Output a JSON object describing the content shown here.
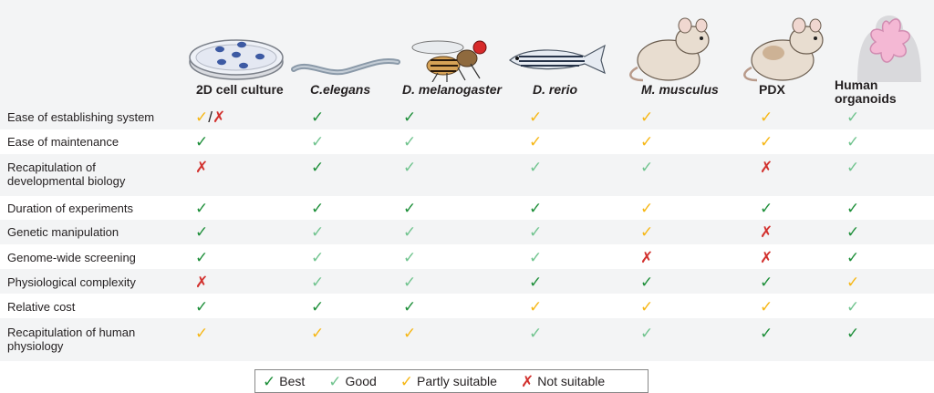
{
  "columns": [
    {
      "label": "2D cell culture",
      "italic": false,
      "icon": "petri-dish-icon"
    },
    {
      "label": "C.elegans",
      "italic": true,
      "icon": "worm-icon"
    },
    {
      "label": "D. melanogaster",
      "italic": true,
      "icon": "fruit-fly-icon"
    },
    {
      "label": "D. rerio",
      "italic": true,
      "icon": "zebrafish-icon"
    },
    {
      "label": "M. musculus",
      "italic": true,
      "icon": "mouse-icon"
    },
    {
      "label": "PDX",
      "italic": false,
      "icon": "pdx-mouse-icon"
    },
    {
      "label": "Human organoids",
      "label_line1": "Human",
      "label_line2": "organoids",
      "italic": false,
      "icon": "organoid-icon"
    }
  ],
  "rows": [
    {
      "label": "Ease of establishing system",
      "marks": [
        "partly/not",
        "best",
        "best",
        "partly",
        "partly",
        "partly",
        "good"
      ]
    },
    {
      "label": "Ease of maintenance",
      "marks": [
        "best",
        "good",
        "good",
        "partly",
        "partly",
        "partly",
        "good"
      ]
    },
    {
      "label": "Recapitulation of developmental biology",
      "label_line1": "Recapitulation of",
      "label_line2": "developmental biology",
      "marks": [
        "not",
        "best",
        "good",
        "good",
        "good",
        "not",
        "good"
      ]
    },
    {
      "label": "Duration of experiments",
      "marks": [
        "best",
        "best",
        "best",
        "best",
        "partly",
        "best",
        "best"
      ]
    },
    {
      "label": "Genetic manipulation",
      "marks": [
        "best",
        "good",
        "good",
        "good",
        "partly",
        "not",
        "best"
      ]
    },
    {
      "label": "Genome-wide screening",
      "marks": [
        "best",
        "good",
        "good",
        "good",
        "not",
        "not",
        "best"
      ]
    },
    {
      "label": "Physiological complexity",
      "marks": [
        "not",
        "good",
        "good",
        "best",
        "best",
        "best",
        "partly"
      ]
    },
    {
      "label": "Relative cost",
      "marks": [
        "best",
        "best",
        "best",
        "partly",
        "partly",
        "partly",
        "good"
      ]
    },
    {
      "label": "Recapitulation of human physiology",
      "label_line1": "Recapitulation of human",
      "label_line2": "physiology",
      "marks": [
        "partly",
        "partly",
        "partly",
        "good",
        "good",
        "best",
        "best"
      ]
    }
  ],
  "legend": [
    {
      "key": "best",
      "label": "Best"
    },
    {
      "key": "good",
      "label": "Good"
    },
    {
      "key": "partly",
      "label": "Partly suitable"
    },
    {
      "key": "not",
      "label": "Not suitable"
    }
  ],
  "symbols": {
    "check": "✓",
    "cross": "✗",
    "slash": "/"
  },
  "colors": {
    "best": "#1e8f3a",
    "good": "#71c48f",
    "partly": "#f6b716",
    "not": "#d2312e",
    "panel_bg": "#f3f4f5"
  }
}
